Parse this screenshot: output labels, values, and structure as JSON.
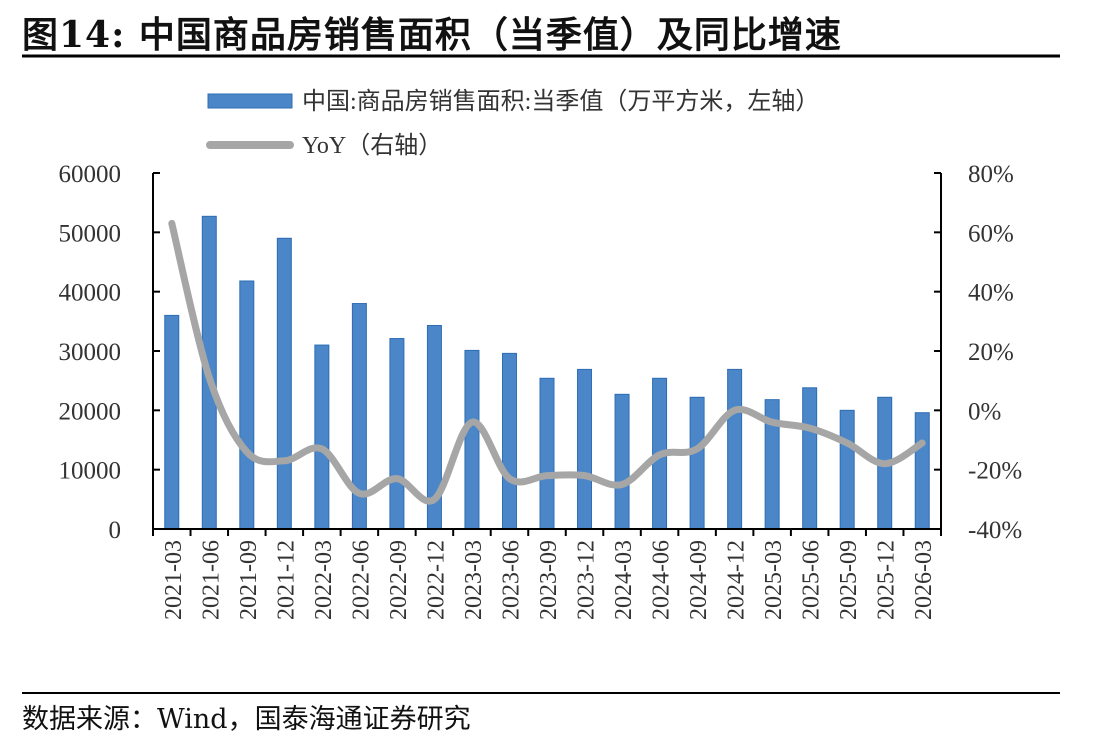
{
  "title": "图14:  中国商品房销售面积（当季值）及同比增速",
  "source": "数据来源：Wind，国泰海通证券研究",
  "colors": {
    "bar": "#4a86c8",
    "bar_edge": "#2f6db3",
    "line": "#a6a6a6",
    "axis": "#000000"
  },
  "chart_data": {
    "type": "bar",
    "categories": [
      "2021-03",
      "2021-06",
      "2021-09",
      "2021-12",
      "2022-03",
      "2022-06",
      "2022-09",
      "2022-12",
      "2023-03",
      "2023-06",
      "2023-09",
      "2023-12",
      "2024-03",
      "2024-06",
      "2024-09",
      "2024-12",
      "2025-03",
      "2025-06",
      "2025-09",
      "2025-12",
      "2026-03"
    ],
    "series": [
      {
        "name": "中国:商品房销售面积:当季值（万平方米，左轴）",
        "type": "bar",
        "axis": "left",
        "values": [
          36000,
          52700,
          41800,
          49000,
          31000,
          38000,
          32100,
          34300,
          30100,
          29600,
          25400,
          26900,
          22700,
          25400,
          22200,
          26900,
          21800,
          23800,
          20000,
          22200,
          19600
        ]
      },
      {
        "name": "YoY（右轴）",
        "type": "line",
        "axis": "right",
        "values": [
          0.63,
          0.11,
          -0.14,
          -0.17,
          -0.13,
          -0.28,
          -0.23,
          -0.3,
          -0.04,
          -0.23,
          -0.22,
          -0.22,
          -0.25,
          -0.15,
          -0.13,
          0.0,
          -0.04,
          -0.06,
          -0.11,
          -0.18,
          -0.11
        ]
      }
    ],
    "y_left": {
      "min": 0,
      "max": 60000,
      "ticks": [
        "0",
        "10000",
        "20000",
        "30000",
        "40000",
        "50000",
        "60000"
      ]
    },
    "y_right": {
      "min": -0.4,
      "max": 0.8,
      "ticks": [
        "-40%",
        "-20%",
        "0%",
        "20%",
        "40%",
        "60%",
        "80%"
      ]
    },
    "grid": false,
    "legend_position": "top-left"
  }
}
